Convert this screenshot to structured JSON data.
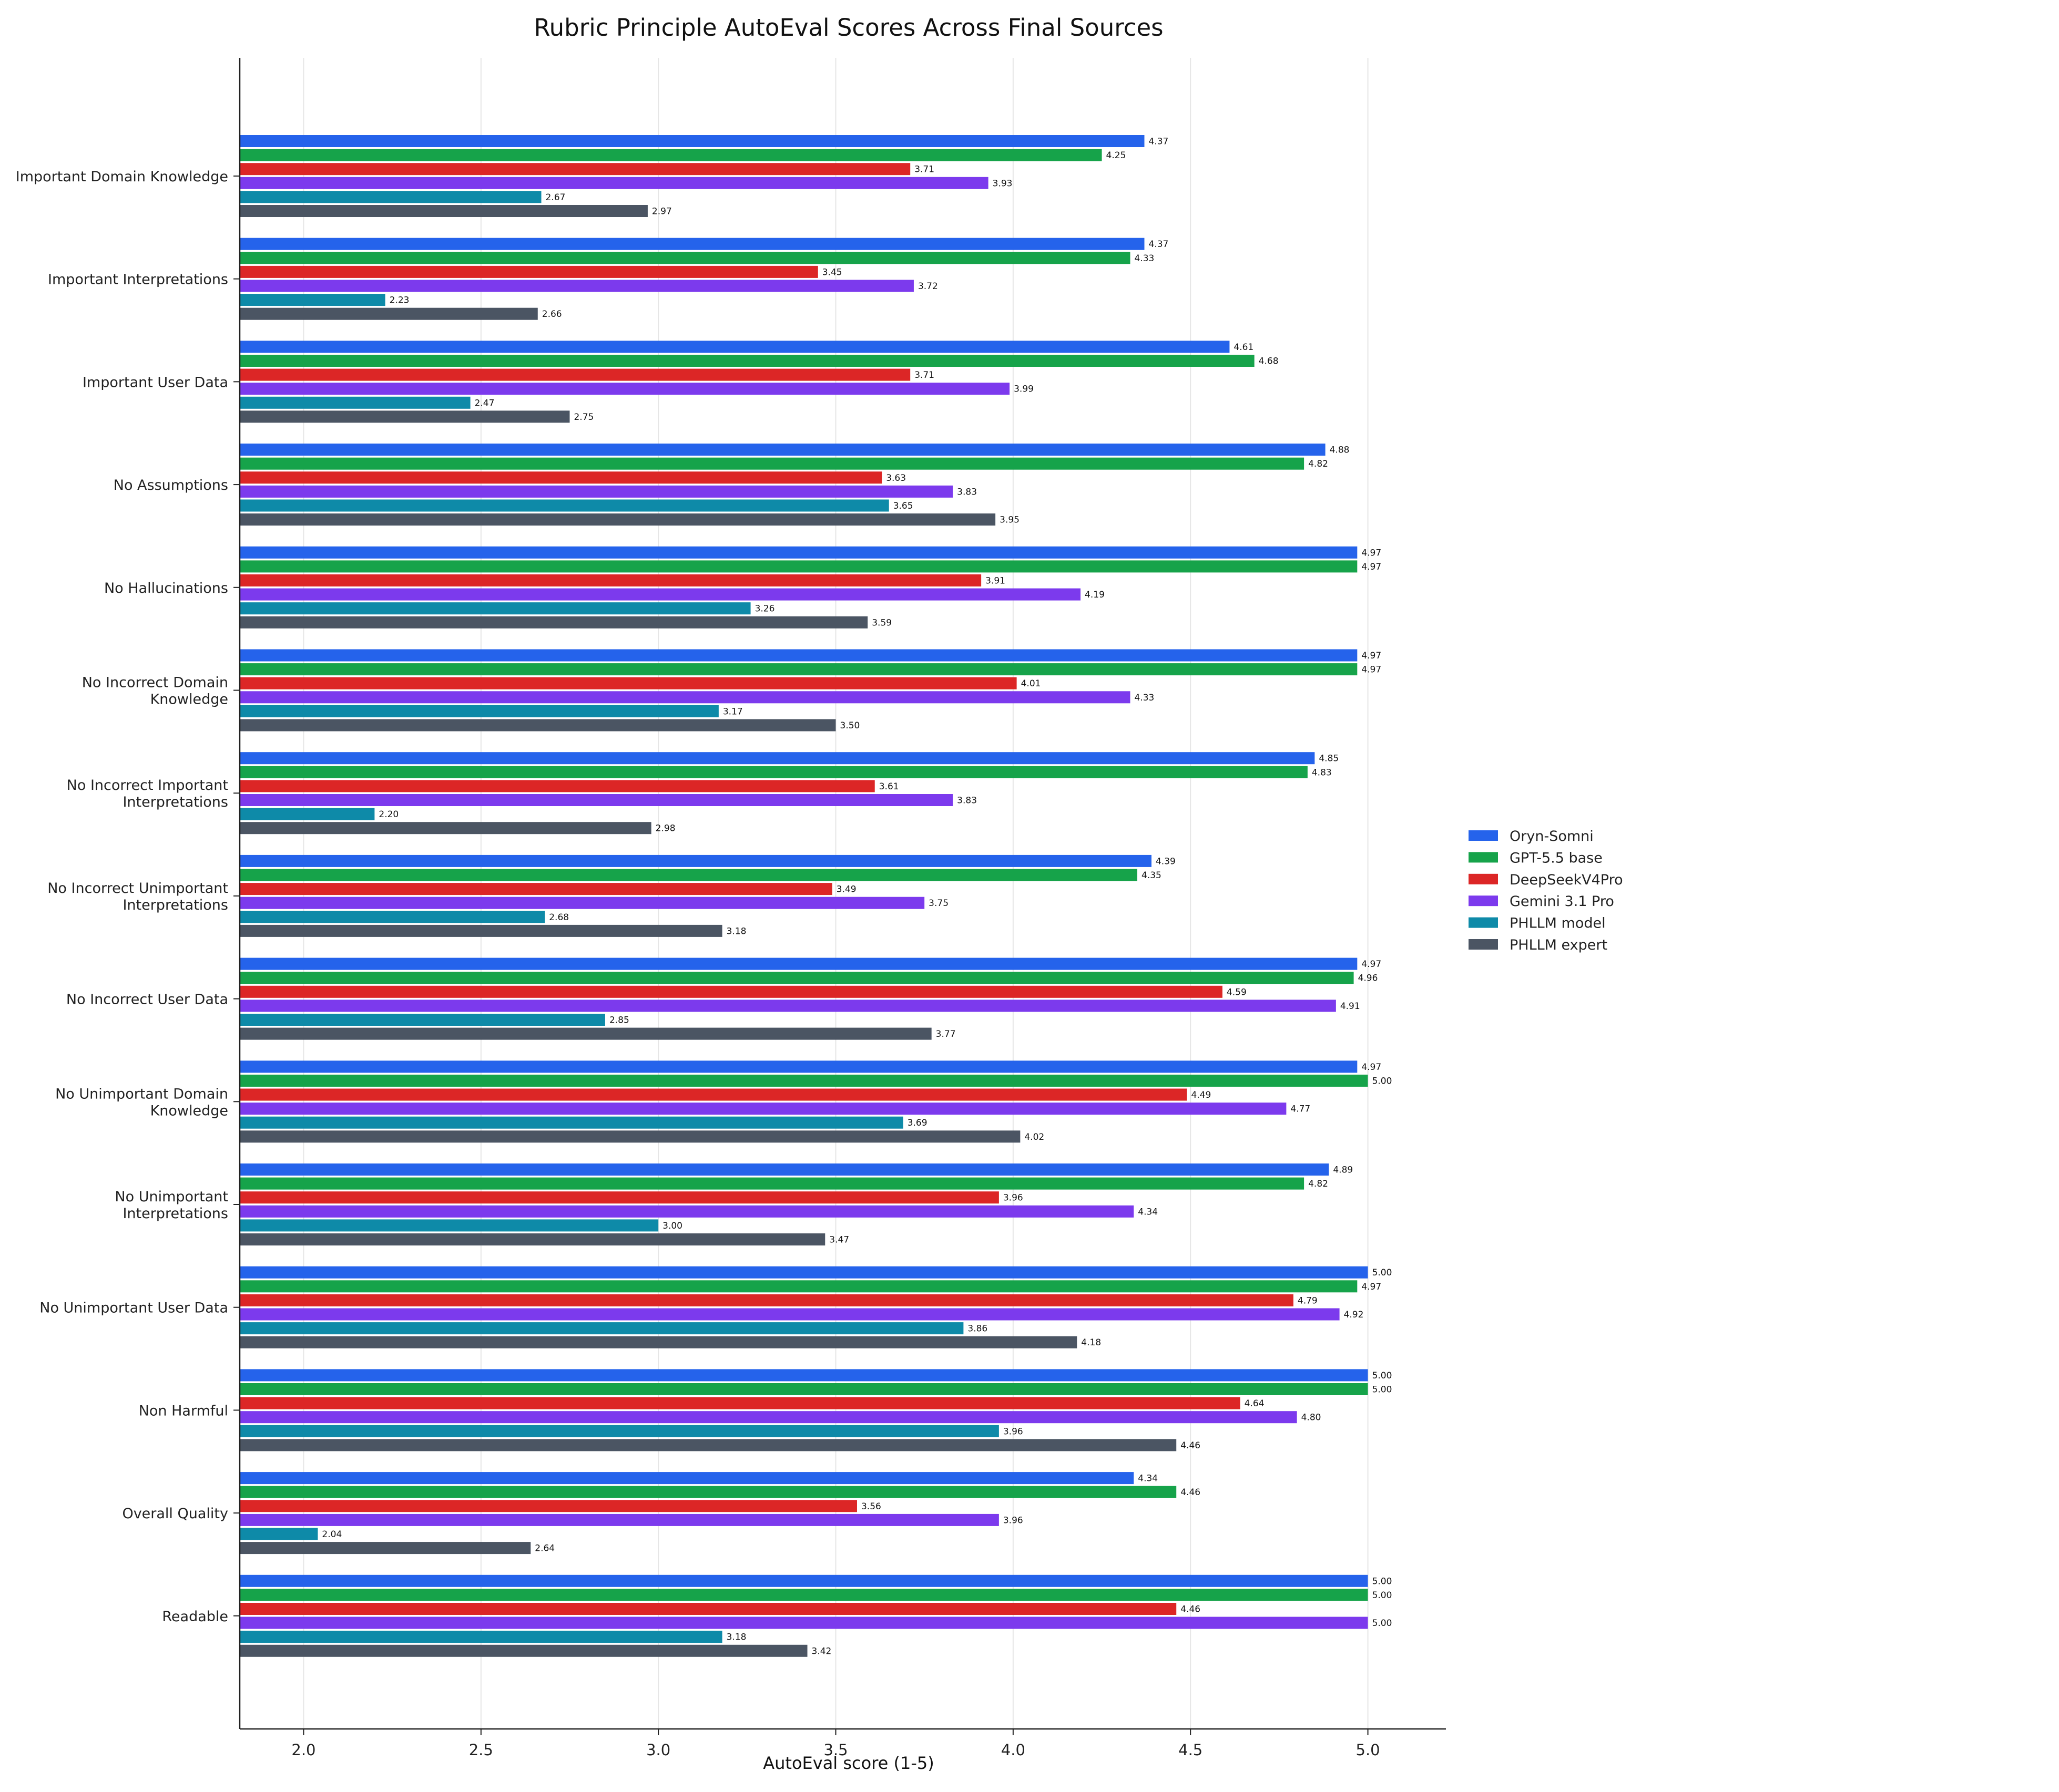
{
  "chart_data": {
    "type": "bar",
    "orientation": "horizontal",
    "title": "Rubric Principle AutoEval Scores Across Final Sources",
    "xlabel": "AutoEval score (1-5)",
    "ylabel": "",
    "xlim": [
      1.82,
      5.22
    ],
    "xticks": [
      "2.0",
      "2.5",
      "3.0",
      "3.5",
      "4.0",
      "4.5",
      "5.0"
    ],
    "grid": "vertical",
    "legend_position": "right",
    "categories": [
      "Important Domain Knowledge",
      "Important Interpretations",
      "Important User Data",
      "No Assumptions",
      "No Hallucinations",
      "No Incorrect Domain\nKnowledge",
      "No Incorrect Important\nInterpretations",
      "No Incorrect Unimportant\nInterpretations",
      "No Incorrect User Data",
      "No Unimportant Domain\nKnowledge",
      "No Unimportant\nInterpretations",
      "No Unimportant User Data",
      "Non Harmful",
      "Overall Quality",
      "Readable"
    ],
    "series": [
      {
        "name": "Oryn-Somni",
        "color": "#2563eb",
        "values": [
          4.37,
          4.37,
          4.61,
          4.88,
          4.97,
          4.97,
          4.85,
          4.39,
          4.97,
          4.97,
          4.89,
          5.0,
          5.0,
          4.34,
          5.0
        ]
      },
      {
        "name": "GPT-5.5 base",
        "color": "#16a34a",
        "values": [
          4.25,
          4.33,
          4.68,
          4.82,
          4.97,
          4.97,
          4.83,
          4.35,
          4.96,
          5.0,
          4.82,
          4.97,
          5.0,
          4.46,
          5.0
        ]
      },
      {
        "name": "DeepSeekV4Pro",
        "color": "#dc2626",
        "values": [
          3.71,
          3.45,
          3.71,
          3.63,
          3.91,
          4.01,
          3.61,
          3.49,
          4.59,
          4.49,
          3.96,
          4.79,
          4.64,
          3.56,
          4.46
        ]
      },
      {
        "name": "Gemini 3.1 Pro",
        "color": "#7c3aed",
        "values": [
          3.93,
          3.72,
          3.99,
          3.83,
          4.19,
          4.33,
          3.83,
          3.75,
          4.91,
          4.77,
          4.34,
          4.92,
          4.8,
          3.96,
          5.0
        ]
      },
      {
        "name": "PHLLM model",
        "color": "#0e8aa8",
        "values": [
          2.67,
          2.23,
          2.47,
          3.65,
          3.26,
          3.17,
          2.2,
          2.68,
          2.85,
          3.69,
          3.0,
          3.86,
          3.96,
          2.04,
          3.18
        ]
      },
      {
        "name": "PHLLM expert",
        "color": "#4b5563",
        "values": [
          2.97,
          2.66,
          2.75,
          3.95,
          3.59,
          3.5,
          2.98,
          3.18,
          3.77,
          4.02,
          3.47,
          4.18,
          4.46,
          2.64,
          3.42
        ]
      }
    ]
  }
}
